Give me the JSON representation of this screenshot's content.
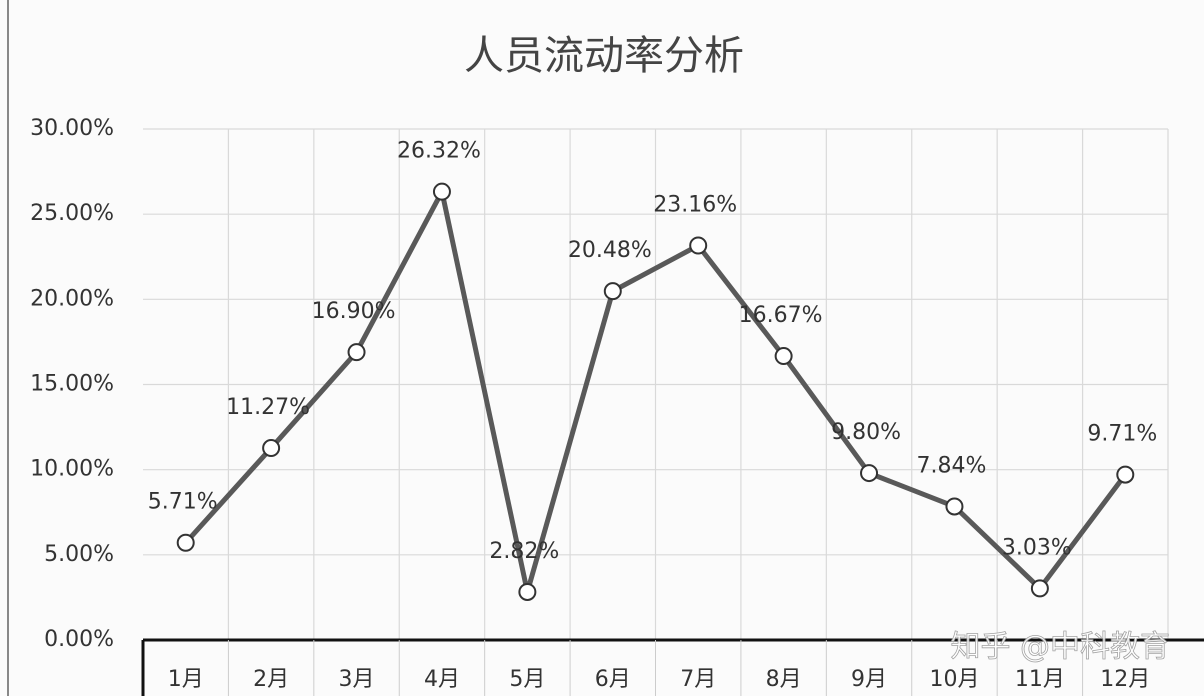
{
  "chart_data": {
    "type": "line",
    "title": "人员流动率分析",
    "categories": [
      "1月",
      "2月",
      "3月",
      "4月",
      "5月",
      "6月",
      "7月",
      "8月",
      "9月",
      "10月",
      "11月",
      "12月"
    ],
    "values": [
      5.71,
      11.27,
      16.9,
      26.32,
      2.82,
      20.48,
      23.16,
      16.67,
      9.8,
      7.84,
      3.03,
      9.71
    ],
    "value_labels": [
      "5.71%",
      "11.27%",
      "16.90%",
      "26.32%",
      "2.82%",
      "20.48%",
      "23.16%",
      "16.67%",
      "9.80%",
      "7.84%",
      "3.03%",
      "9.71%"
    ],
    "color": "#595959",
    "ylim": [
      0,
      30
    ],
    "yticks": [
      {
        "value": 0,
        "label": "0.00%"
      },
      {
        "value": 5,
        "label": "5.00%"
      },
      {
        "value": 10,
        "label": "10.00%"
      },
      {
        "value": 15,
        "label": "15.00%"
      },
      {
        "value": 20,
        "label": "20.00%"
      },
      {
        "value": 25,
        "label": "25.00%"
      },
      {
        "value": 30,
        "label": "30.00%"
      }
    ],
    "grid": true,
    "watermark": "知乎 @中科教育"
  }
}
